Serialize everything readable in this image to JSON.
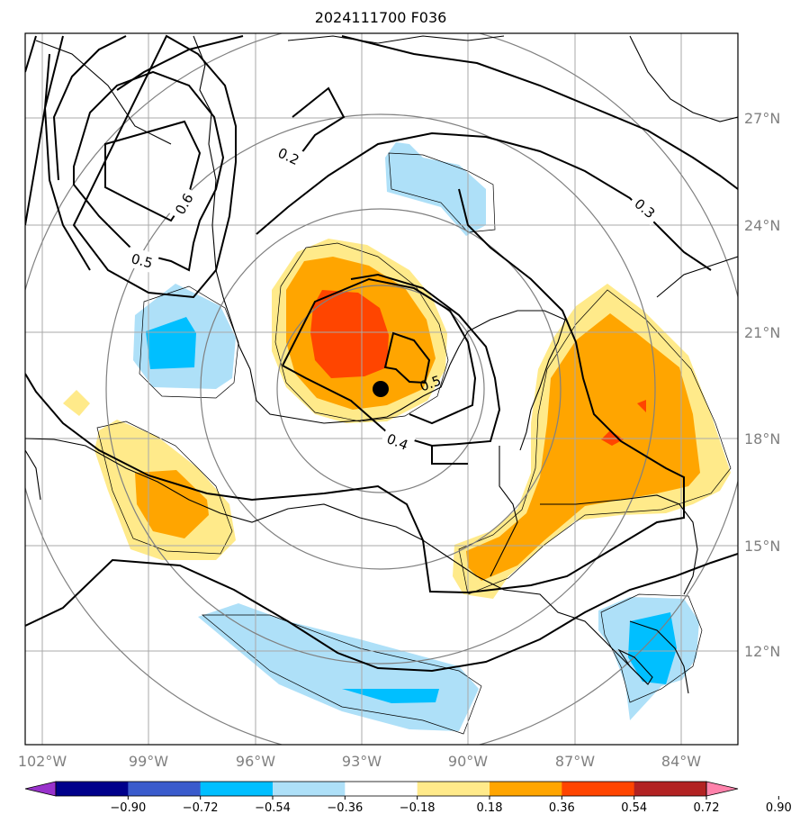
{
  "title": "2024111700 F036",
  "lon_labels": [
    "102°W",
    "99°W",
    "96°W",
    "93°W",
    "90°W",
    "87°W",
    "84°W"
  ],
  "lat_labels": [
    "27°N",
    "24°N",
    "21°N",
    "18°N",
    "15°N",
    "12°N"
  ],
  "contour_labels": [
    "0.2",
    "0.6",
    "0.5",
    "0.3",
    "0.4",
    "0.5"
  ],
  "colorbar": {
    "labels": [
      "−0.90",
      "−0.72",
      "−0.54",
      "−0.36",
      "−0.18",
      "0.18",
      "0.36",
      "0.54",
      "0.72",
      "0.90"
    ],
    "colors": [
      "#9932cc",
      "#00008b",
      "#3a5bcc",
      "#00bfff",
      "#aee0f8",
      "#ffffff",
      "#ffea8a",
      "#ffa500",
      "#ff4500",
      "#b22222",
      "#ff82ab"
    ]
  },
  "fill_colors": {
    "light_blue": "#aee0f8",
    "blue": "#00bfff",
    "yellow": "#ffea8a",
    "orange": "#ffa500",
    "red_orange": "#ff4500",
    "dark_red": "#b22222"
  },
  "storm_marker": "storm-center"
}
